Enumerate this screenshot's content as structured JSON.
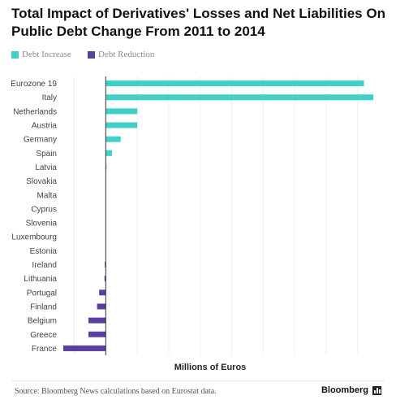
{
  "title": "Total Impact of Derivatives' Losses and Net Liabilities On Public Debt Change From 2011 to 2014",
  "colors": {
    "increase": "#3fd0c7",
    "reduction": "#5b3fa0",
    "axis": "#333333",
    "grid": "#eeeeee"
  },
  "chart_data": {
    "type": "bar",
    "orientation": "horizontal",
    "title": "Total Impact of Derivatives' Losses and Net Liabilities On Public Debt Change From 2011 to 2014",
    "xlabel": "Millions of Euros",
    "ylabel": "",
    "xlim": [
      -2800,
      17300
    ],
    "xticks": [
      -2000,
      0,
      2000,
      4000,
      6000,
      8000,
      10000,
      12000,
      14000,
      16000
    ],
    "xtick_labels": [
      "-2,000",
      "0",
      "2,000",
      "4,000",
      "6,000",
      "8,000",
      "10,000",
      "12,000",
      "14,000",
      "16,000"
    ],
    "legend": {
      "position": "top-left",
      "entries": [
        "Debt Increase",
        "Debt Reduction"
      ]
    },
    "categories": [
      "Eurozone 19",
      "Italy",
      "Netherlands",
      "Austria",
      "Germany",
      "Spain",
      "Latvia",
      "Slovakia",
      "Malta",
      "Cyprus",
      "Slovenia",
      "Luxembourg",
      "Estonia",
      "Ireland",
      "Lithuania",
      "Portugal",
      "Finland",
      "Belgium",
      "Greece",
      "France"
    ],
    "values": [
      16400,
      17000,
      2000,
      2000,
      950,
      400,
      30,
      0,
      0,
      0,
      0,
      0,
      0,
      -60,
      -80,
      -420,
      -550,
      -1100,
      -1100,
      -2700
    ]
  },
  "source": "Source: Bloomberg News calculations based on Eurostat data.",
  "brand": "Bloomberg"
}
